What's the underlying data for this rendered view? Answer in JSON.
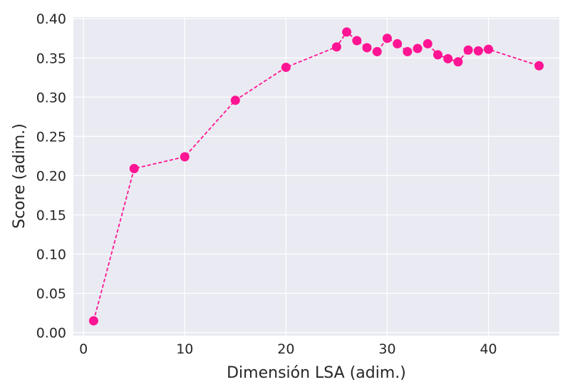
{
  "chart_data": {
    "type": "line",
    "title": "",
    "xlabel": "Dimensión LSA (adim.)",
    "ylabel": "Score (adim.)",
    "xlim": [
      -1,
      47
    ],
    "ylim": [
      -0.004,
      0.402
    ],
    "xticks": [
      0,
      10,
      20,
      30,
      40
    ],
    "yticks": [
      0.0,
      0.05,
      0.1,
      0.15,
      0.2,
      0.25,
      0.3,
      0.35,
      0.4
    ],
    "xtick_labels": [
      "0",
      "10",
      "20",
      "30",
      "40"
    ],
    "ytick_labels": [
      "0.00",
      "0.05",
      "0.10",
      "0.15",
      "0.20",
      "0.25",
      "0.30",
      "0.35",
      "0.40"
    ],
    "grid": true,
    "style": {
      "background": "#eaeaf2",
      "grid_color": "#ffffff",
      "series_color": "#ff1493",
      "line_style": "dashed",
      "marker": "circle"
    },
    "series": [
      {
        "x": [
          1,
          5,
          10,
          15,
          20,
          25,
          26,
          27,
          28,
          29,
          30,
          31,
          32,
          33,
          34,
          35,
          36,
          37,
          38,
          39,
          40,
          45
        ],
        "y": [
          0.015,
          0.209,
          0.224,
          0.296,
          0.338,
          0.364,
          0.383,
          0.372,
          0.363,
          0.358,
          0.375,
          0.368,
          0.358,
          0.362,
          0.368,
          0.354,
          0.349,
          0.345,
          0.36,
          0.359,
          0.361,
          0.34
        ]
      }
    ]
  }
}
